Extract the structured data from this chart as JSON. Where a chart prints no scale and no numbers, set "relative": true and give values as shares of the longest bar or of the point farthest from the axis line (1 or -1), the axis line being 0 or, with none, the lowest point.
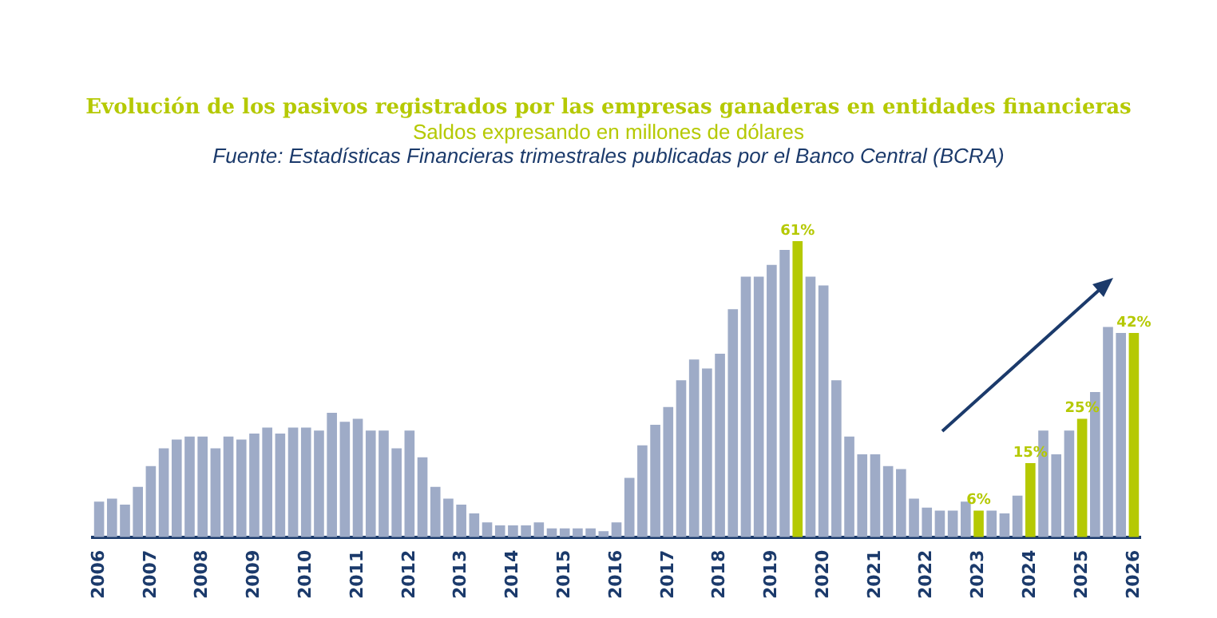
{
  "chart_data": {
    "type": "bar",
    "title": "Evolución de los pasivos registrados por las empresas ganaderas en entidades financieras",
    "subtitle": "Saldos expresando en millones de dólares",
    "annotations": [
      "Fuente: Estadísticas Financieras trimestrales publicadas por el Banco Central (BCRA)",
      {
        "text": "61%",
        "y": 1
      },
      {
        "text": "6%",
        "x": "2023",
        "y": 0.09
      },
      {
        "text": "15%",
        "x": "2024",
        "y": 0.25
      },
      {
        "text": "25%",
        "x": "2025",
        "y": 0.4
      },
      {
        "text": "42%",
        "x": "2026",
        "y": 0.69
      }
    ],
    "relative": true,
    "grid": false,
    "legend": false,
    "tick_labels": "x",
    "categories": [
      "2006",
      null,
      null,
      null,
      "2007",
      null,
      null,
      null,
      "2008",
      null,
      null,
      null,
      "2009",
      null,
      null,
      null,
      "2010",
      null,
      null,
      null,
      "2011",
      null,
      null,
      null,
      "2012",
      null,
      null,
      null,
      "2013",
      null,
      null,
      null,
      "2014",
      null,
      null,
      null,
      "2015",
      null,
      null,
      null,
      "2016",
      null,
      null,
      null,
      "2017",
      null,
      null,
      null,
      "2018",
      null,
      null,
      null,
      "2019",
      null,
      null,
      null,
      "2020",
      null,
      null,
      null,
      "2021",
      null,
      null,
      null,
      "2022",
      null,
      null,
      null,
      "2023",
      null,
      null,
      null,
      "2024",
      null,
      null,
      null,
      "2025",
      null,
      null,
      null,
      "2026"
    ],
    "values": [
      0.12,
      0.13,
      0.11,
      0.17,
      0.24,
      0.3,
      0.33,
      0.34,
      0.34,
      0.3,
      0.34,
      0.33,
      0.35,
      0.37,
      0.35,
      0.37,
      0.37,
      0.36,
      0.42,
      0.39,
      0.4,
      0.36,
      0.36,
      0.3,
      0.36,
      0.27,
      0.17,
      0.13,
      0.11,
      0.08,
      0.05,
      0.04,
      0.04,
      0.04,
      0.05,
      0.03,
      0.03,
      0.03,
      0.03,
      0.02,
      0.05,
      0.2,
      0.31,
      0.38,
      0.44,
      0.53,
      0.6,
      0.57,
      0.62,
      0.77,
      0.88,
      0.88,
      0.92,
      0.97,
      1,
      0.88,
      0.85,
      0.53,
      0.34,
      0.28,
      0.28,
      0.24,
      0.23,
      0.13,
      0.1,
      0.09,
      0.09,
      0.12,
      0.09,
      0.09,
      0.08,
      0.14,
      0.25,
      0.36,
      0.28,
      0.36,
      0.4,
      0.49,
      0.71,
      0.69,
      0.69
    ],
    "colors": [
      "#9eabc7",
      "#9eabc7",
      "#9eabc7",
      "#9eabc7",
      "#9eabc7",
      "#9eabc7",
      "#9eabc7",
      "#9eabc7",
      "#9eabc7",
      "#9eabc7",
      "#9eabc7",
      "#9eabc7",
      "#9eabc7",
      "#9eabc7",
      "#9eabc7",
      "#9eabc7",
      "#9eabc7",
      "#9eabc7",
      "#9eabc7",
      "#9eabc7",
      "#9eabc7",
      "#9eabc7",
      "#9eabc7",
      "#9eabc7",
      "#9eabc7",
      "#9eabc7",
      "#9eabc7",
      "#9eabc7",
      "#9eabc7",
      "#9eabc7",
      "#9eabc7",
      "#9eabc7",
      "#9eabc7",
      "#9eabc7",
      "#9eabc7",
      "#9eabc7",
      "#9eabc7",
      "#9eabc7",
      "#9eabc7",
      "#9eabc7",
      "#9eabc7",
      "#9eabc7",
      "#9eabc7",
      "#9eabc7",
      "#9eabc7",
      "#9eabc7",
      "#9eabc7",
      "#9eabc7",
      "#9eabc7",
      "#9eabc7",
      "#9eabc7",
      "#9eabc7",
      "#9eabc7",
      "#9eabc7",
      "#b5c903",
      "#9eabc7",
      "#9eabc7",
      "#9eabc7",
      "#9eabc7",
      "#9eabc7",
      "#9eabc7",
      "#9eabc7",
      "#9eabc7",
      "#9eabc7",
      "#9eabc7",
      "#9eabc7",
      "#9eabc7",
      "#9eabc7",
      "#b5c903",
      "#9eabc7",
      "#9eabc7",
      "#9eabc7",
      "#b5c903",
      "#9eabc7",
      "#9eabc7",
      "#9eabc7",
      "#b5c903",
      "#9eabc7",
      "#9eabc7",
      "#9eabc7",
      "#b5c903"
    ]
  }
}
